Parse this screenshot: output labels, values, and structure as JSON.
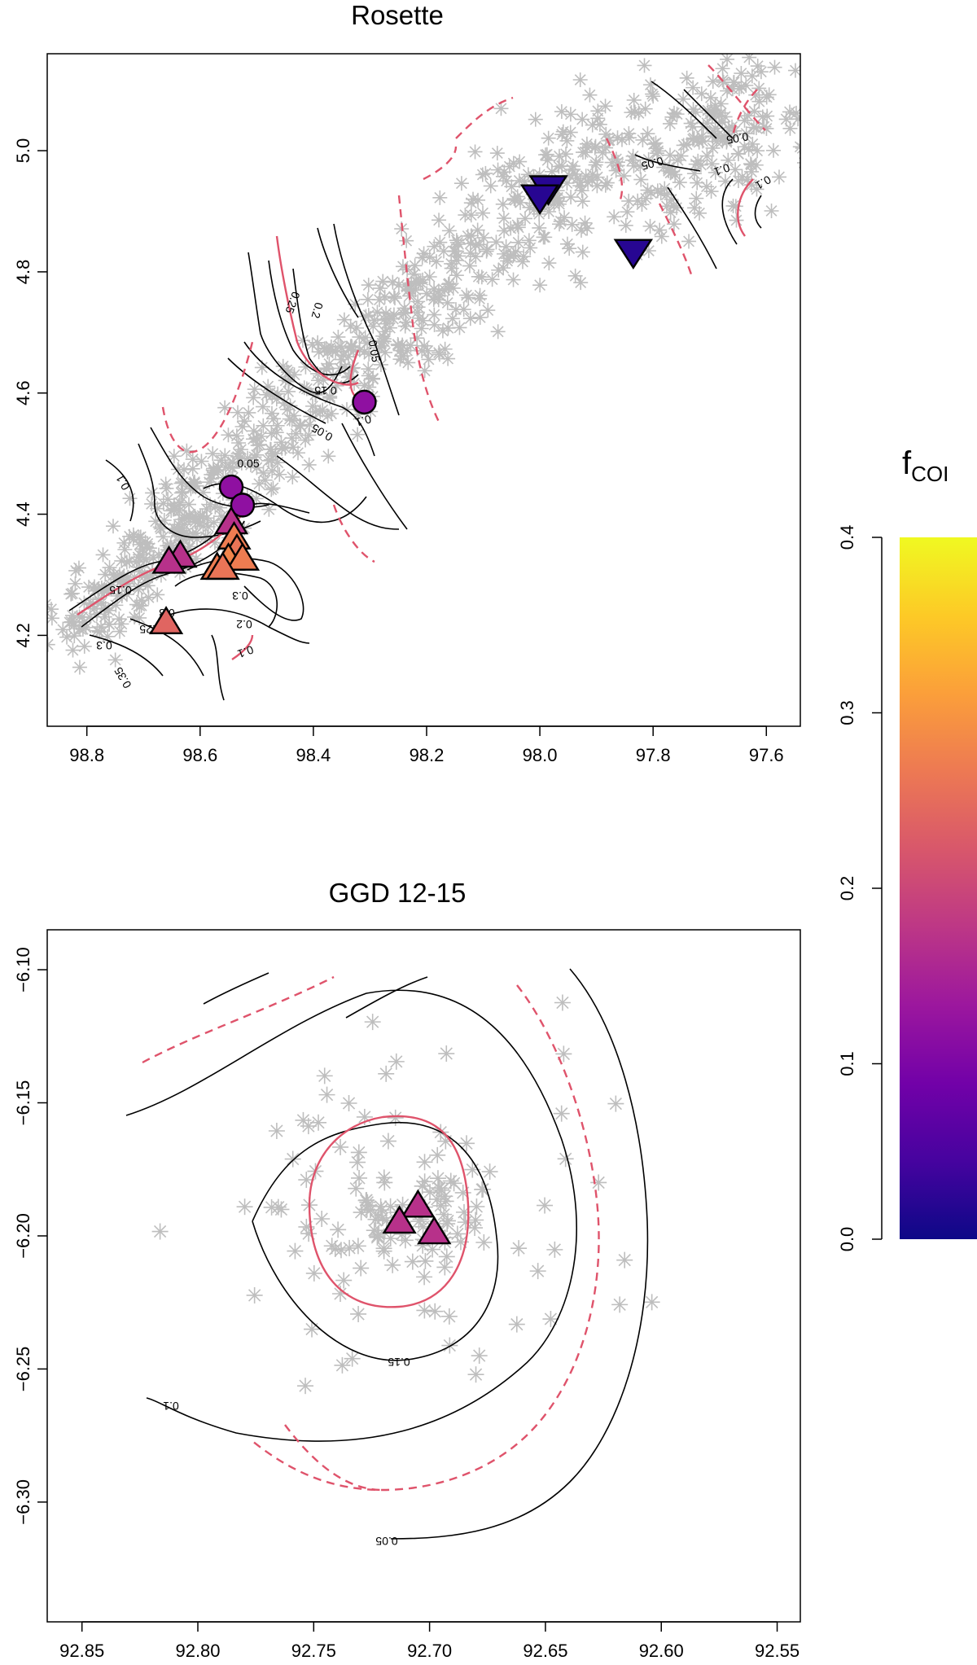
{
  "chart_data": [
    {
      "type": "scatter",
      "title": "Rosette",
      "xlim": [
        98.87,
        97.54
      ],
      "ylim": [
        4.05,
        5.16
      ],
      "xticks": [
        98.8,
        98.6,
        98.4,
        98.2,
        98.0,
        97.8,
        97.6
      ],
      "xtick_labels": [
        "98.8",
        "98.6",
        "98.4",
        "98.2",
        "98.0",
        "97.8",
        "97.6"
      ],
      "yticks": [
        4.2,
        4.4,
        4.6,
        4.8,
        5.0
      ],
      "ytick_labels": [
        "4.2",
        "4.4",
        "4.6",
        "4.8",
        "5.0"
      ],
      "background_points_marker": "gray asterisk",
      "sources": [
        {
          "marker": "circle",
          "x": 98.31,
          "y": 4.585,
          "fcor": 0.12
        },
        {
          "marker": "circle",
          "x": 98.545,
          "y": 4.445,
          "fcor": 0.12
        },
        {
          "marker": "circle",
          "x": 98.525,
          "y": 4.415,
          "fcor": 0.12
        },
        {
          "marker": "triangle-down",
          "x": 97.985,
          "y": 4.94,
          "fcor": 0.02
        },
        {
          "marker": "triangle-down",
          "x": 98.0,
          "y": 4.925,
          "fcor": 0.02
        },
        {
          "marker": "triangle-down",
          "x": 97.835,
          "y": 4.835,
          "fcor": 0.02
        },
        {
          "marker": "triangle-up",
          "x": 98.545,
          "y": 4.385,
          "fcor": 0.17
        },
        {
          "marker": "triangle-up",
          "x": 98.635,
          "y": 4.33,
          "fcor": 0.17
        },
        {
          "marker": "triangle-up",
          "x": 98.655,
          "y": 4.32,
          "fcor": 0.17
        },
        {
          "marker": "triangle-up",
          "x": 98.54,
          "y": 4.36,
          "fcor": 0.27
        },
        {
          "marker": "triangle-up",
          "x": 98.535,
          "y": 4.34,
          "fcor": 0.26
        },
        {
          "marker": "triangle-up",
          "x": 98.55,
          "y": 4.325,
          "fcor": 0.28
        },
        {
          "marker": "triangle-up",
          "x": 98.525,
          "y": 4.325,
          "fcor": 0.27
        },
        {
          "marker": "triangle-up",
          "x": 98.57,
          "y": 4.31,
          "fcor": 0.27
        },
        {
          "marker": "triangle-up",
          "x": 98.56,
          "y": 4.31,
          "fcor": 0.26
        },
        {
          "marker": "triangle-up",
          "x": 98.66,
          "y": 4.22,
          "fcor": 0.24
        }
      ],
      "contour_labels": [
        "0.05",
        "0.05",
        "0.05",
        "0.05",
        "0.05",
        "0.1",
        "0.1",
        "0.1",
        "0.1",
        "0.15",
        "0.15",
        "0.2",
        "0.2",
        "0.25",
        "0.25",
        "0.3",
        "0.3",
        "0.3",
        "0.35",
        "0.1"
      ]
    },
    {
      "type": "scatter",
      "title": "GGD 12-15",
      "xlim": [
        92.865,
        92.54
      ],
      "ylim": [
        -6.345,
        -6.085
      ],
      "xticks": [
        92.85,
        92.8,
        92.75,
        92.7,
        92.65,
        92.6,
        92.55
      ],
      "xtick_labels": [
        "92.85",
        "92.80",
        "92.75",
        "92.70",
        "92.65",
        "92.60",
        "92.55"
      ],
      "yticks": [
        -6.1,
        -6.15,
        -6.2,
        -6.25,
        -6.3
      ],
      "ytick_labels": [
        "−6.10",
        "−6.15",
        "−6.20",
        "−6.25",
        "−6.30"
      ],
      "background_points_marker": "gray asterisk",
      "sources": [
        {
          "marker": "triangle-up",
          "x": 92.705,
          "y": -6.189,
          "fcor": 0.17
        },
        {
          "marker": "triangle-up",
          "x": 92.713,
          "y": -6.195,
          "fcor": 0.17
        },
        {
          "marker": "triangle-up",
          "x": 92.698,
          "y": -6.199,
          "fcor": 0.17
        }
      ],
      "contour_labels": [
        "0.15",
        "0.1",
        "0.05"
      ]
    }
  ],
  "colorbar": {
    "title": "f",
    "subscript": "COI",
    "range": [
      0.0,
      0.4
    ],
    "ticks": [
      "0.0",
      "0.1",
      "0.2",
      "0.3",
      "0.4"
    ],
    "colormap": "plasma",
    "stops": [
      "#0d0887",
      "#46039f",
      "#7201a8",
      "#9c179e",
      "#bd3786",
      "#d8576b",
      "#ed7953",
      "#fb9f3a",
      "#fdca26",
      "#f0f921"
    ]
  },
  "colors": {
    "background_points": "#bebebe",
    "contour_line": "#000000",
    "highlight_contour": "#df536b"
  }
}
